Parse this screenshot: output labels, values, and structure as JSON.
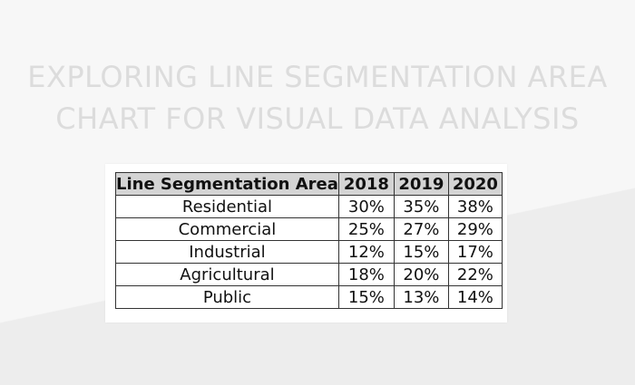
{
  "title": {
    "line1": "EXPLORING LINE SEGMENTATION AREA",
    "line2": "CHART FOR VISUAL DATA ANALYSIS"
  },
  "table": {
    "headers": [
      "Line Segmentation Area",
      "2018",
      "2019",
      "2020"
    ],
    "rows": [
      [
        "Residential",
        "30%",
        "35%",
        "38%"
      ],
      [
        "Commercial",
        "25%",
        "27%",
        "29%"
      ],
      [
        "Industrial",
        "12%",
        "15%",
        "17%"
      ],
      [
        "Agricultural",
        "18%",
        "20%",
        "22%"
      ],
      [
        "Public",
        "15%",
        "13%",
        "14%"
      ]
    ]
  },
  "colors": {
    "header_background": "#d4d4d4",
    "title_text": "#dcdcdc",
    "border": "#333333"
  }
}
